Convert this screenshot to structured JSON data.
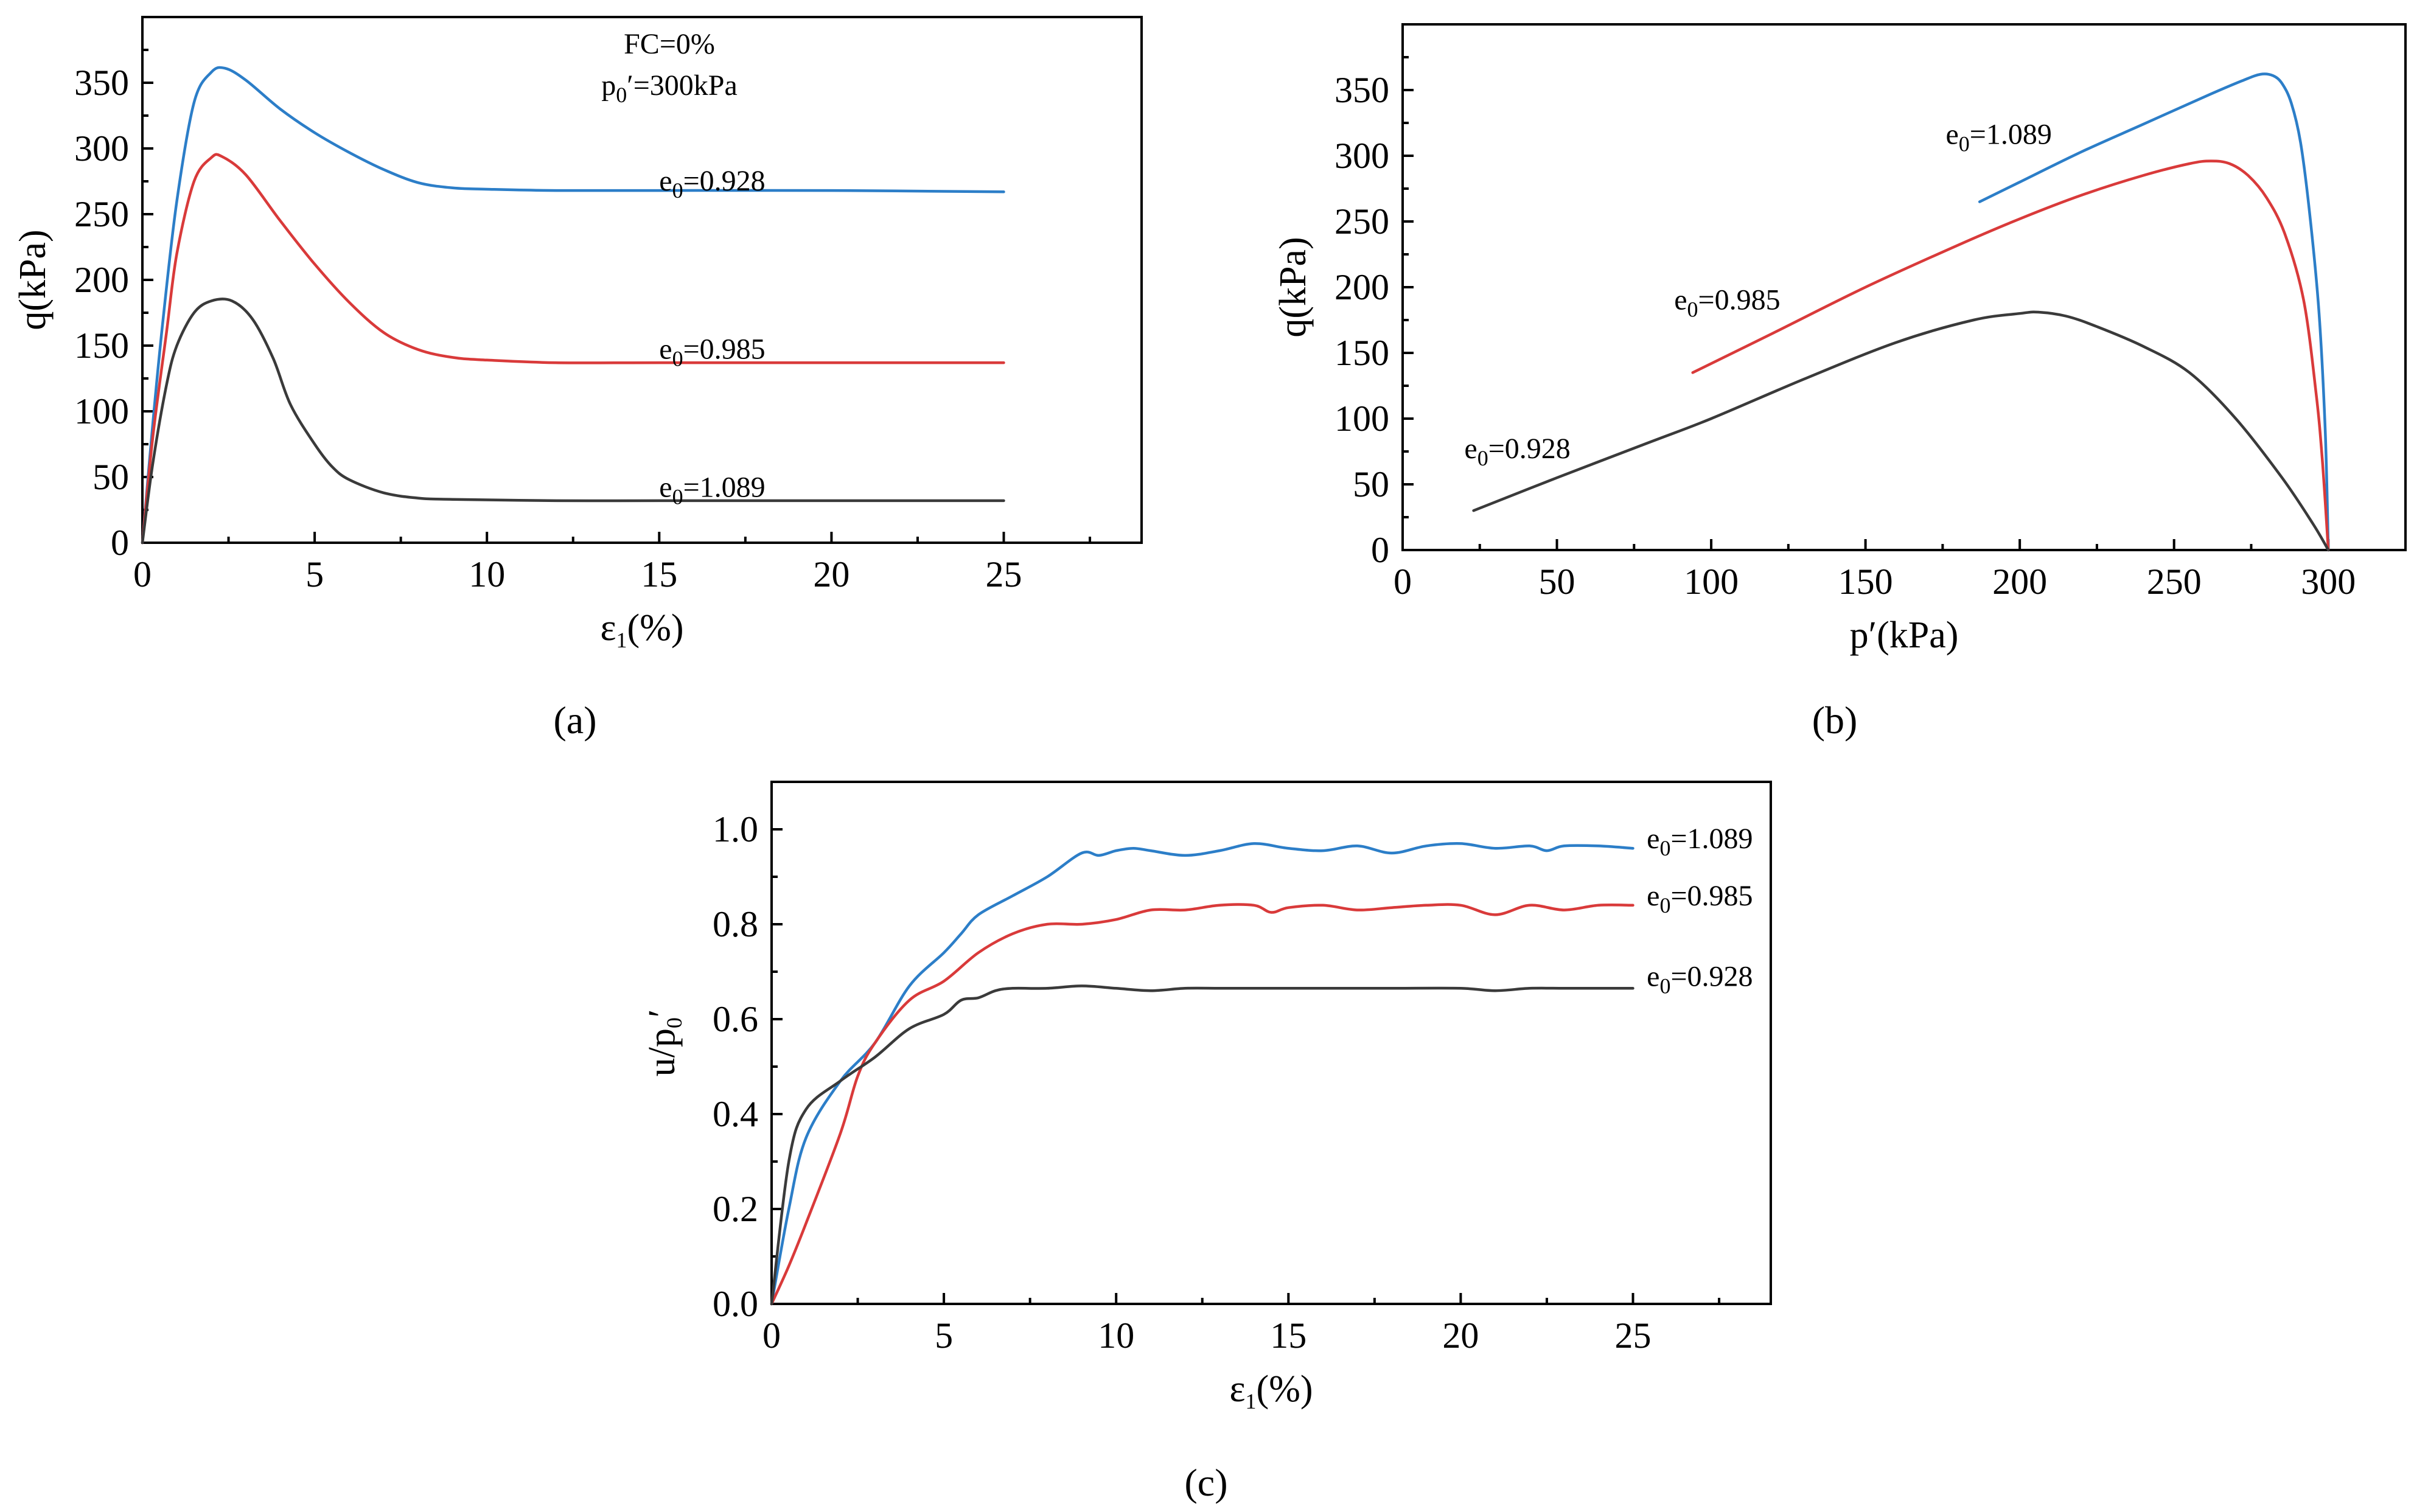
{
  "colors": {
    "blue": "#2c7ec8",
    "red": "#d93a3a",
    "black": "#3a3a3a"
  },
  "chart_data": [
    {
      "id": "a",
      "type": "line",
      "caption": "(a)",
      "xlabel": "ε1(%)",
      "ylabel": "q(kPa)",
      "xlim": [
        0,
        29
      ],
      "ylim": [
        0,
        400
      ],
      "xticks": [
        0,
        5,
        10,
        15,
        20,
        25
      ],
      "yticks": [
        0,
        50,
        100,
        150,
        200,
        250,
        300,
        350
      ],
      "conditions": [
        "FC=0%",
        "p0′=300kPa"
      ],
      "series": [
        {
          "name": "e0=0.928",
          "color": "blue",
          "label_at": [
            15.0,
            268
          ],
          "points": [
            [
              0,
              0
            ],
            [
              0.3,
              90
            ],
            [
              0.6,
              170
            ],
            [
              1.0,
              260
            ],
            [
              1.5,
              335
            ],
            [
              2.0,
              358
            ],
            [
              2.4,
              361
            ],
            [
              3.0,
              352
            ],
            [
              4.0,
              330
            ],
            [
              5.0,
              312
            ],
            [
              6.0,
              297
            ],
            [
              7.0,
              284
            ],
            [
              8.0,
              274
            ],
            [
              9.0,
              270
            ],
            [
              10.0,
              269
            ],
            [
              12.0,
              268
            ],
            [
              15.0,
              268
            ],
            [
              20.0,
              268
            ],
            [
              25.0,
              267
            ]
          ]
        },
        {
          "name": "e0=0.985",
          "color": "red",
          "label_at": [
            15.0,
            140
          ],
          "points": [
            [
              0,
              0
            ],
            [
              0.3,
              80
            ],
            [
              0.7,
              160
            ],
            [
              1.0,
              220
            ],
            [
              1.5,
              275
            ],
            [
              2.0,
              293
            ],
            [
              2.3,
              294
            ],
            [
              3.0,
              280
            ],
            [
              4.0,
              245
            ],
            [
              5.0,
              212
            ],
            [
              6.0,
              183
            ],
            [
              7.0,
              160
            ],
            [
              8.0,
              147
            ],
            [
              9.0,
              141
            ],
            [
              10.0,
              139
            ],
            [
              12.0,
              137
            ],
            [
              15.0,
              137
            ],
            [
              20.0,
              137
            ],
            [
              25.0,
              137
            ]
          ]
        },
        {
          "name": "e0=1.089",
          "color": "black",
          "label_at": [
            15.0,
            35
          ],
          "points": [
            [
              0,
              0
            ],
            [
              0.3,
              60
            ],
            [
              0.7,
              120
            ],
            [
              1.0,
              150
            ],
            [
              1.5,
              175
            ],
            [
              2.0,
              184
            ],
            [
              2.6,
              184
            ],
            [
              3.2,
              170
            ],
            [
              3.8,
              140
            ],
            [
              4.3,
              105
            ],
            [
              5.0,
              75
            ],
            [
              5.5,
              58
            ],
            [
              6.0,
              48
            ],
            [
              7.0,
              38
            ],
            [
              8.0,
              34
            ],
            [
              9.0,
              33
            ],
            [
              12.0,
              32
            ],
            [
              15.0,
              32
            ],
            [
              20.0,
              32
            ],
            [
              25.0,
              32
            ]
          ]
        }
      ]
    },
    {
      "id": "b",
      "type": "line",
      "caption": "(b)",
      "xlabel": "p′(kPa)",
      "ylabel": "q(kPa)",
      "xlim": [
        0,
        325
      ],
      "ylim": [
        0,
        400
      ],
      "xticks": [
        0,
        50,
        100,
        150,
        200,
        250,
        300
      ],
      "yticks": [
        0,
        50,
        100,
        150,
        200,
        250,
        300,
        350
      ],
      "series": [
        {
          "name": "e0=1.089",
          "color": "blue",
          "label_at": [
            176,
            309
          ],
          "points": [
            [
              187,
              265
            ],
            [
              200,
              280
            ],
            [
              220,
              303
            ],
            [
              240,
              324
            ],
            [
              260,
              345
            ],
            [
              272,
              357
            ],
            [
              278,
              362
            ],
            [
              282,
              361
            ],
            [
              285,
              355
            ],
            [
              288,
              340
            ],
            [
              291,
              310
            ],
            [
              294,
              255
            ],
            [
              297,
              180
            ],
            [
              299,
              90
            ],
            [
              300,
              0
            ]
          ]
        },
        {
          "name": "e0=0.985",
          "color": "red",
          "label_at": [
            88,
            183
          ],
          "points": [
            [
              94,
              135
            ],
            [
              120,
              165
            ],
            [
              150,
              200
            ],
            [
              180,
              232
            ],
            [
              200,
              252
            ],
            [
              220,
              270
            ],
            [
              240,
              285
            ],
            [
              255,
              294
            ],
            [
              262,
              296
            ],
            [
              268,
              294
            ],
            [
              274,
              285
            ],
            [
              280,
              268
            ],
            [
              286,
              240
            ],
            [
              292,
              190
            ],
            [
              296,
              120
            ],
            [
              298,
              70
            ],
            [
              300,
              0
            ]
          ]
        },
        {
          "name": "e0=0.928",
          "color": "black",
          "label_at": [
            20,
            70
          ],
          "points": [
            [
              23,
              30
            ],
            [
              50,
              55
            ],
            [
              80,
              82
            ],
            [
              100,
              100
            ],
            [
              130,
              130
            ],
            [
              160,
              158
            ],
            [
              185,
              175
            ],
            [
              200,
              180
            ],
            [
              206,
              181
            ],
            [
              215,
              178
            ],
            [
              225,
              170
            ],
            [
              240,
              155
            ],
            [
              255,
              135
            ],
            [
              270,
              100
            ],
            [
              285,
              55
            ],
            [
              295,
              20
            ],
            [
              300,
              0
            ]
          ]
        }
      ]
    },
    {
      "id": "c",
      "type": "line",
      "caption": "(c)",
      "xlabel": "ε1(%)",
      "ylabel": "u/p0′",
      "xlim": [
        0,
        29
      ],
      "ylim": [
        0,
        1.1
      ],
      "xticks": [
        0,
        5,
        10,
        15,
        20,
        25
      ],
      "yticks": [
        "0.0",
        "0.2",
        "0.4",
        "0.6",
        "0.8",
        "1.0"
      ],
      "series": [
        {
          "name": "e0=1.089",
          "color": "blue",
          "label_at": [
            25.4,
            0.96
          ],
          "points": [
            [
              0,
              0
            ],
            [
              0.5,
              0.2
            ],
            [
              1.0,
              0.35
            ],
            [
              2.0,
              0.47
            ],
            [
              3.0,
              0.55
            ],
            [
              4.0,
              0.67
            ],
            [
              5.0,
              0.74
            ],
            [
              5.5,
              0.78
            ],
            [
              6.0,
              0.82
            ],
            [
              7.0,
              0.86
            ],
            [
              8.0,
              0.9
            ],
            [
              9.0,
              0.95
            ],
            [
              9.5,
              0.945
            ],
            [
              10.0,
              0.955
            ],
            [
              10.5,
              0.96
            ],
            [
              11.0,
              0.955
            ],
            [
              12.0,
              0.945
            ],
            [
              13.0,
              0.955
            ],
            [
              14.0,
              0.97
            ],
            [
              15.0,
              0.96
            ],
            [
              16.0,
              0.955
            ],
            [
              17.0,
              0.965
            ],
            [
              18.0,
              0.95
            ],
            [
              19.0,
              0.965
            ],
            [
              20.0,
              0.97
            ],
            [
              21.0,
              0.96
            ],
            [
              22.0,
              0.965
            ],
            [
              22.5,
              0.955
            ],
            [
              23.0,
              0.965
            ],
            [
              24.0,
              0.965
            ],
            [
              25.0,
              0.96
            ]
          ]
        },
        {
          "name": "e0=0.985",
          "color": "red",
          "label_at": [
            25.4,
            0.84
          ],
          "points": [
            [
              0,
              0
            ],
            [
              0.5,
              0.08
            ],
            [
              1.0,
              0.17
            ],
            [
              2.0,
              0.36
            ],
            [
              2.5,
              0.48
            ],
            [
              3.0,
              0.55
            ],
            [
              4.0,
              0.64
            ],
            [
              5.0,
              0.68
            ],
            [
              6.0,
              0.74
            ],
            [
              7.0,
              0.78
            ],
            [
              8.0,
              0.8
            ],
            [
              9.0,
              0.8
            ],
            [
              10.0,
              0.81
            ],
            [
              11.0,
              0.83
            ],
            [
              12.0,
              0.83
            ],
            [
              13.0,
              0.84
            ],
            [
              14.0,
              0.84
            ],
            [
              14.5,
              0.825
            ],
            [
              15.0,
              0.835
            ],
            [
              16.0,
              0.84
            ],
            [
              17.0,
              0.83
            ],
            [
              18.0,
              0.835
            ],
            [
              19.0,
              0.84
            ],
            [
              20.0,
              0.84
            ],
            [
              21.0,
              0.82
            ],
            [
              22.0,
              0.84
            ],
            [
              23.0,
              0.83
            ],
            [
              24.0,
              0.84
            ],
            [
              25.0,
              0.84
            ]
          ]
        },
        {
          "name": "e0=0.928",
          "color": "black",
          "label_at": [
            25.4,
            0.67
          ],
          "points": [
            [
              0,
              0
            ],
            [
              0.5,
              0.3
            ],
            [
              1.0,
              0.41
            ],
            [
              2.0,
              0.47
            ],
            [
              3.0,
              0.52
            ],
            [
              4.0,
              0.58
            ],
            [
              5.0,
              0.61
            ],
            [
              5.5,
              0.64
            ],
            [
              6.0,
              0.645
            ],
            [
              6.5,
              0.66
            ],
            [
              7.0,
              0.665
            ],
            [
              8.0,
              0.665
            ],
            [
              9.0,
              0.67
            ],
            [
              10.0,
              0.665
            ],
            [
              11.0,
              0.66
            ],
            [
              12.0,
              0.665
            ],
            [
              13.0,
              0.665
            ],
            [
              14.0,
              0.665
            ],
            [
              15.0,
              0.665
            ],
            [
              16.0,
              0.665
            ],
            [
              18.0,
              0.665
            ],
            [
              20.0,
              0.665
            ],
            [
              21.0,
              0.66
            ],
            [
              22.0,
              0.665
            ],
            [
              23.0,
              0.665
            ],
            [
              24.0,
              0.665
            ],
            [
              25.0,
              0.665
            ]
          ]
        }
      ]
    }
  ]
}
